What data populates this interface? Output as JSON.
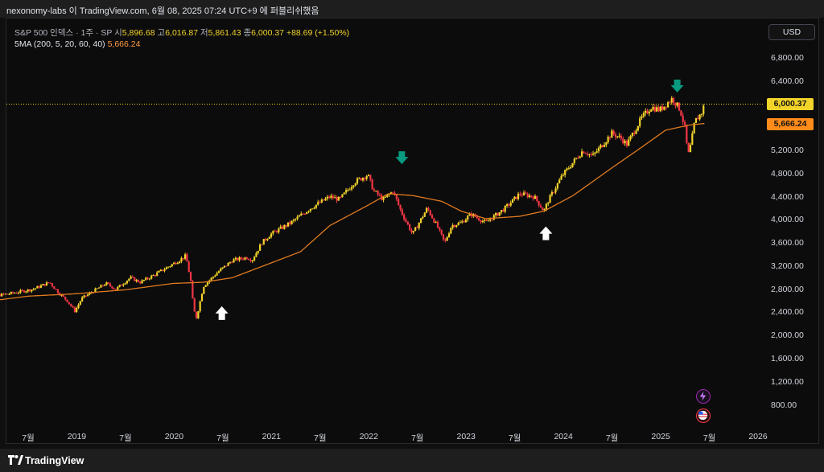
{
  "window": {
    "title": "nexonomy-labs 이 TradingView.com, 6월 08, 2025 07:24 UTC+9 에 퍼블리쉬했음",
    "footer_brand": "TradingView"
  },
  "legend": {
    "symbol": "S&P 500 인덱스 · 1주 · SP",
    "open_label": "시",
    "open": "5,896.68",
    "high_label": "고",
    "high": "6,016.87",
    "low_label": "저",
    "low": "5,861.43",
    "close_label": "종",
    "close": "6,000.37",
    "change": "+88.69 (+1.50%)",
    "ma_label": "5MA (200, 5, 20, 60, 40)",
    "ma_value": "5,666.24"
  },
  "currency": "USD",
  "colors": {
    "up": "#f2d32a",
    "down": "#f23645",
    "ma": "#e07a1f",
    "down_arrow": "#089981",
    "up_arrow": "#ffffff",
    "price_line": "#f2d32a"
  },
  "price_labels": {
    "last": "6,000.37",
    "ma": "5,666.24"
  },
  "chart_data": {
    "type": "candlestick",
    "title": "S&P 500 인덱스 · 1주 · SP",
    "y_ticks": [
      "6,800.00",
      "6,400.00",
      "6,000.00",
      "5,600.00",
      "5,200.00",
      "4,800.00",
      "4,400.00",
      "4,000.00",
      "3,600.00",
      "3,200.00",
      "2,800.00",
      "2,400.00",
      "2,000.00",
      "1,600.00",
      "1,200.00",
      "800.00"
    ],
    "ylim": [
      560,
      7060
    ],
    "x_ticks": [
      "7월",
      "2019",
      "7월",
      "2020",
      "7월",
      "2021",
      "7월",
      "2022",
      "7월",
      "2023",
      "7월",
      "2024",
      "7월",
      "2025",
      "7월",
      "2026"
    ],
    "x_tick_dates": [
      2018.5,
      2019.0,
      2019.5,
      2020.0,
      2020.5,
      2021.0,
      2021.5,
      2022.0,
      2022.5,
      2023.0,
      2023.5,
      2024.0,
      2024.5,
      2025.0,
      2025.5,
      2026.0
    ],
    "series": [
      {
        "name": "S&P 500",
        "anchors": [
          [
            2017.94,
            2690
          ],
          [
            2018.05,
            2760
          ],
          [
            2018.12,
            2680
          ],
          [
            2018.3,
            2720
          ],
          [
            2018.55,
            2800
          ],
          [
            2018.72,
            2920
          ],
          [
            2018.8,
            2760
          ],
          [
            2018.9,
            2600
          ],
          [
            2018.98,
            2420
          ],
          [
            2019.05,
            2640
          ],
          [
            2019.3,
            2900
          ],
          [
            2019.4,
            2800
          ],
          [
            2019.55,
            3000
          ],
          [
            2019.65,
            2920
          ],
          [
            2019.8,
            3050
          ],
          [
            2019.98,
            3230
          ],
          [
            2020.08,
            3330
          ],
          [
            2020.12,
            3380
          ],
          [
            2020.17,
            2950
          ],
          [
            2020.2,
            2450
          ],
          [
            2020.23,
            2300
          ],
          [
            2020.3,
            2850
          ],
          [
            2020.45,
            3100
          ],
          [
            2020.6,
            3300
          ],
          [
            2020.75,
            3350
          ],
          [
            2020.8,
            3300
          ],
          [
            2020.9,
            3600
          ],
          [
            2020.99,
            3750
          ],
          [
            2021.2,
            3950
          ],
          [
            2021.4,
            4200
          ],
          [
            2021.6,
            4400
          ],
          [
            2021.7,
            4350
          ],
          [
            2021.85,
            4650
          ],
          [
            2021.99,
            4780
          ],
          [
            2022.05,
            4500
          ],
          [
            2022.15,
            4350
          ],
          [
            2022.25,
            4500
          ],
          [
            2022.33,
            4150
          ],
          [
            2022.45,
            3750
          ],
          [
            2022.6,
            4200
          ],
          [
            2022.7,
            3900
          ],
          [
            2022.78,
            3600
          ],
          [
            2022.85,
            3900
          ],
          [
            2022.95,
            3950
          ],
          [
            2023.05,
            4100
          ],
          [
            2023.2,
            3950
          ],
          [
            2023.4,
            4200
          ],
          [
            2023.55,
            4450
          ],
          [
            2023.7,
            4400
          ],
          [
            2023.8,
            4150
          ],
          [
            2023.85,
            4350
          ],
          [
            2023.99,
            4770
          ],
          [
            2024.2,
            5200
          ],
          [
            2024.3,
            5100
          ],
          [
            2024.5,
            5500
          ],
          [
            2024.6,
            5400
          ],
          [
            2024.65,
            5300
          ],
          [
            2024.8,
            5750
          ],
          [
            2024.9,
            5950
          ],
          [
            2024.99,
            5900
          ],
          [
            2025.12,
            6100
          ],
          [
            2025.2,
            5900
          ],
          [
            2025.25,
            5580
          ],
          [
            2025.28,
            5100
          ],
          [
            2025.31,
            5300
          ],
          [
            2025.35,
            5700
          ],
          [
            2025.42,
            5850
          ],
          [
            2025.45,
            6000
          ]
        ]
      },
      {
        "name": "5MA (200, 5, 20, 60, 40)",
        "anchors": [
          [
            2017.94,
            2560
          ],
          [
            2018.5,
            2680
          ],
          [
            2018.98,
            2720
          ],
          [
            2019.5,
            2790
          ],
          [
            2019.99,
            2900
          ],
          [
            2020.3,
            2920
          ],
          [
            2020.6,
            3000
          ],
          [
            2020.99,
            3250
          ],
          [
            2021.3,
            3450
          ],
          [
            2021.6,
            3900
          ],
          [
            2021.99,
            4250
          ],
          [
            2022.2,
            4450
          ],
          [
            2022.45,
            4420
          ],
          [
            2022.75,
            4320
          ],
          [
            2022.95,
            4150
          ],
          [
            2023.2,
            4020
          ],
          [
            2023.55,
            4060
          ],
          [
            2023.8,
            4150
          ],
          [
            2024.1,
            4420
          ],
          [
            2024.5,
            4900
          ],
          [
            2024.8,
            5250
          ],
          [
            2025.05,
            5550
          ],
          [
            2025.3,
            5640
          ],
          [
            2025.45,
            5666
          ]
        ]
      }
    ],
    "annotations": [
      {
        "type": "down_arrow",
        "x": 2022.34,
        "y": 5060
      },
      {
        "type": "down_arrow",
        "x": 2025.17,
        "y": 6300
      },
      {
        "type": "up_arrow",
        "x": 2020.49,
        "y": 2380
      },
      {
        "type": "up_arrow",
        "x": 2023.82,
        "y": 3760
      }
    ],
    "price_line": 6000.37,
    "grid": false,
    "legend_position": "top-left"
  }
}
